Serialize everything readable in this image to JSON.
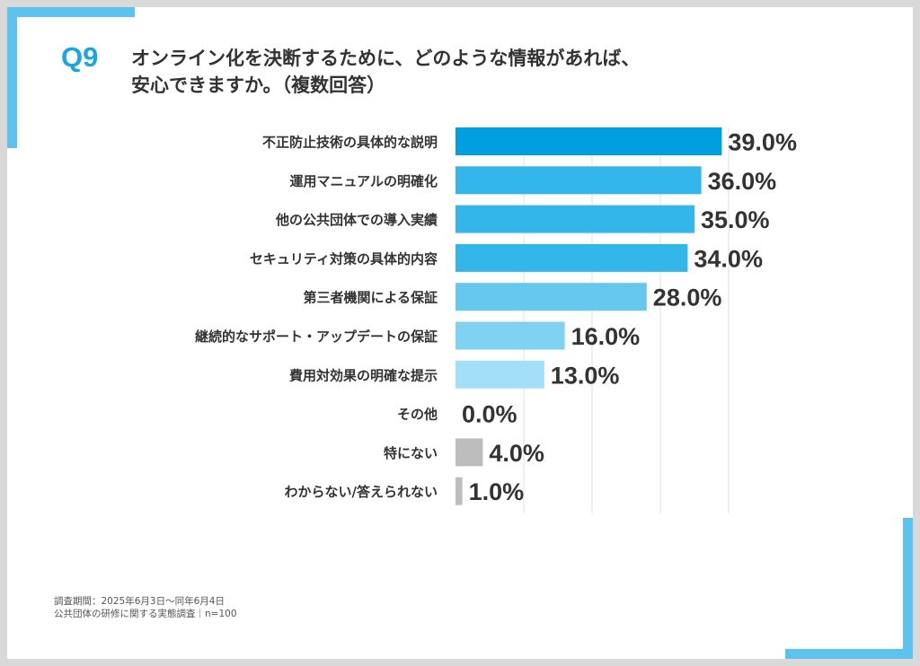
{
  "question": {
    "number": "Q9",
    "line1": "オンライン化を決断するために、どのような情報があれば、",
    "line2": "安心できますか。（複数回答）"
  },
  "chart_data": {
    "type": "bar",
    "orientation": "horizontal",
    "categories": [
      "不正防止技術の具体的な説明",
      "運用マニュアルの明確化",
      "他の公共団体での導入実績",
      "セキュリティ対策の具体的内容",
      "第三者機関による保証",
      "継続的なサポート・アップデートの保証",
      "費用対効果の明確な提示",
      "その他",
      "特にない",
      "わからない/答えられない"
    ],
    "values": [
      39.0,
      36.0,
      35.0,
      34.0,
      28.0,
      16.0,
      13.0,
      0.0,
      4.0,
      1.0
    ],
    "value_labels": [
      "39.0%",
      "36.0%",
      "35.0%",
      "34.0%",
      "28.0%",
      "16.0%",
      "13.0%",
      "0.0%",
      "4.0%",
      "1.0%"
    ],
    "bar_colors": [
      "#00a0e0",
      "#33b6ea",
      "#33b6ea",
      "#33b6ea",
      "#66c7ef",
      "#80d2f3",
      "#a3dff7",
      "#bdbdbd",
      "#bdbdbd",
      "#bdbdbd"
    ],
    "xlim": [
      0,
      40
    ],
    "grid": true,
    "legend": "none"
  },
  "footnote": {
    "line1": "調査期間：2025年6月3日～同年6月4日",
    "line2": "公共団体の研修に関する実態調査｜n=100"
  }
}
